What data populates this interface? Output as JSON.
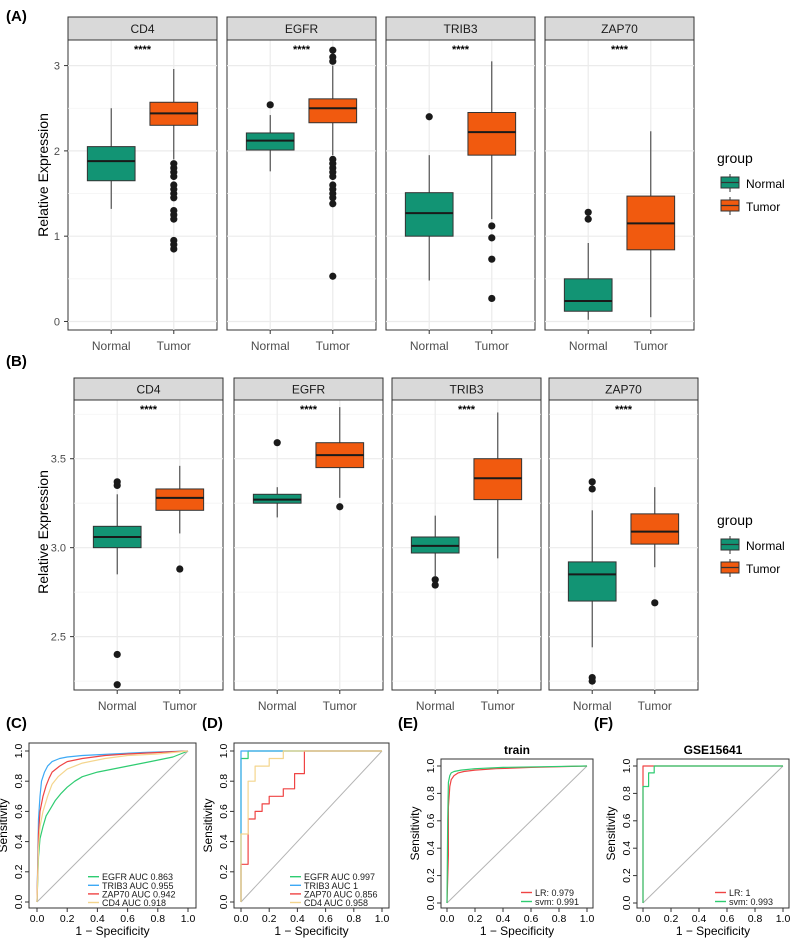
{
  "colors": {
    "normal": "#129474",
    "tumor": "#f15a0f",
    "strip_bg": "#d9d9d9",
    "grid": "#ebebeb",
    "roc_egfr": "#2ecc71",
    "roc_trib3": "#3da9f5",
    "roc_zap70": "#ef4444",
    "roc_cd4": "#f4d58d"
  },
  "legend": {
    "title": "group",
    "items": [
      "Normal",
      "Tumor"
    ]
  },
  "chart_data": [
    {
      "id": "A",
      "panel_label": "(A)",
      "type": "boxplot",
      "ylabel": "Relative Expression",
      "ylim": [
        -0.1,
        3.3
      ],
      "yticks": [
        0,
        1,
        2,
        3
      ],
      "ytick_labels": [
        "0",
        "1",
        "2",
        "3"
      ],
      "categories": [
        "Normal",
        "Tumor"
      ],
      "facets": [
        {
          "title": "CD4",
          "signif": "****",
          "boxes": [
            {
              "group": "Normal",
              "min": 1.32,
              "q1": 1.65,
              "median": 1.88,
              "q3": 2.05,
              "max": 2.5,
              "outliers": []
            },
            {
              "group": "Tumor",
              "min": 1.9,
              "q1": 2.3,
              "median": 2.44,
              "q3": 2.57,
              "max": 2.96,
              "outliers": [
                1.85,
                1.8,
                1.75,
                1.7,
                1.6,
                1.55,
                1.5,
                1.45,
                1.3,
                1.25,
                1.2,
                0.95,
                0.9,
                0.85
              ]
            }
          ]
        },
        {
          "title": "EGFR",
          "signif": "****",
          "boxes": [
            {
              "group": "Normal",
              "min": 1.76,
              "q1": 2.01,
              "median": 2.12,
              "q3": 2.21,
              "max": 2.42,
              "outliers": [
                2.54
              ]
            },
            {
              "group": "Tumor",
              "min": 1.95,
              "q1": 2.33,
              "median": 2.5,
              "q3": 2.61,
              "max": 3.0,
              "outliers": [
                3.18,
                3.1,
                3.05,
                1.9,
                1.85,
                1.8,
                1.75,
                1.7,
                1.6,
                1.55,
                1.5,
                1.45,
                1.38,
                0.53
              ]
            }
          ]
        },
        {
          "title": "TRIB3",
          "signif": "****",
          "boxes": [
            {
              "group": "Normal",
              "min": 0.48,
              "q1": 1.0,
              "median": 1.27,
              "q3": 1.51,
              "max": 1.95,
              "outliers": [
                2.4
              ]
            },
            {
              "group": "Tumor",
              "min": 1.2,
              "q1": 1.95,
              "median": 2.22,
              "q3": 2.45,
              "max": 3.05,
              "outliers": [
                1.12,
                0.98,
                0.73,
                0.27
              ]
            }
          ]
        },
        {
          "title": "ZAP70",
          "signif": "****",
          "boxes": [
            {
              "group": "Normal",
              "min": 0.02,
              "q1": 0.12,
              "median": 0.24,
              "q3": 0.5,
              "max": 0.92,
              "outliers": [
                1.28,
                1.2
              ]
            },
            {
              "group": "Tumor",
              "min": 0.05,
              "q1": 0.84,
              "median": 1.15,
              "q3": 1.47,
              "max": 2.23,
              "outliers": []
            }
          ]
        }
      ]
    },
    {
      "id": "B",
      "panel_label": "(B)",
      "type": "boxplot",
      "ylabel": "Relative Expression",
      "ylim": [
        2.2,
        3.83
      ],
      "yticks": [
        2.5,
        3.0,
        3.5
      ],
      "ytick_labels": [
        "2.5",
        "3.0",
        "3.5"
      ],
      "categories": [
        "Normal",
        "Tumor"
      ],
      "facets": [
        {
          "title": "CD4",
          "signif": "****",
          "boxes": [
            {
              "group": "Normal",
              "min": 2.85,
              "q1": 3.0,
              "median": 3.06,
              "q3": 3.12,
              "max": 3.3,
              "outliers": [
                3.37,
                3.35,
                2.4,
                2.23
              ]
            },
            {
              "group": "Tumor",
              "min": 3.08,
              "q1": 3.21,
              "median": 3.28,
              "q3": 3.33,
              "max": 3.46,
              "outliers": [
                2.88
              ]
            }
          ]
        },
        {
          "title": "EGFR",
          "signif": "****",
          "boxes": [
            {
              "group": "Normal",
              "min": 3.17,
              "q1": 3.25,
              "median": 3.27,
              "q3": 3.3,
              "max": 3.34,
              "outliers": [
                3.59
              ]
            },
            {
              "group": "Tumor",
              "min": 3.28,
              "q1": 3.45,
              "median": 3.52,
              "q3": 3.59,
              "max": 3.79,
              "outliers": [
                3.23
              ]
            }
          ]
        },
        {
          "title": "TRIB3",
          "signif": "****",
          "boxes": [
            {
              "group": "Normal",
              "min": 2.84,
              "q1": 2.97,
              "median": 3.01,
              "q3": 3.06,
              "max": 3.18,
              "outliers": [
                2.82,
                2.79
              ]
            },
            {
              "group": "Tumor",
              "min": 2.94,
              "q1": 3.27,
              "median": 3.39,
              "q3": 3.5,
              "max": 3.76,
              "outliers": []
            }
          ]
        },
        {
          "title": "ZAP70",
          "signif": "****",
          "boxes": [
            {
              "group": "Normal",
              "min": 2.44,
              "q1": 2.7,
              "median": 2.85,
              "q3": 2.92,
              "max": 3.21,
              "outliers": [
                3.37,
                3.33,
                2.27,
                2.25
              ]
            },
            {
              "group": "Tumor",
              "min": 2.89,
              "q1": 3.02,
              "median": 3.09,
              "q3": 3.19,
              "max": 3.34,
              "outliers": [
                2.69
              ]
            }
          ]
        }
      ]
    },
    {
      "id": "C",
      "panel_label": "(C)",
      "type": "line",
      "title": "",
      "xlabel": "1 − Specificity",
      "ylabel": "Sensitivity",
      "xlim": [
        0,
        1
      ],
      "ylim": [
        0,
        1
      ],
      "ticks": [
        0,
        0.2,
        0.4,
        0.6,
        0.8,
        1
      ],
      "tick_labels": [
        "0.0",
        "0.2",
        "0.4",
        "0.6",
        "0.8",
        "1.0"
      ],
      "series": [
        {
          "name": "EGFR AUC 0.863",
          "color": "#2ecc71",
          "x": [
            0,
            0.01,
            0.02,
            0.04,
            0.06,
            0.09,
            0.12,
            0.16,
            0.2,
            0.25,
            0.3,
            0.4,
            0.5,
            0.6,
            0.75,
            0.9,
            1
          ],
          "y": [
            0,
            0.3,
            0.42,
            0.5,
            0.57,
            0.62,
            0.67,
            0.72,
            0.76,
            0.8,
            0.83,
            0.86,
            0.88,
            0.9,
            0.93,
            0.96,
            1
          ]
        },
        {
          "name": "TRIB3 AUC 0.955",
          "color": "#3da9f5",
          "x": [
            0,
            0.01,
            0.02,
            0.03,
            0.05,
            0.07,
            0.1,
            0.15,
            0.2,
            0.3,
            0.5,
            0.7,
            1
          ],
          "y": [
            0,
            0.55,
            0.7,
            0.8,
            0.86,
            0.9,
            0.93,
            0.95,
            0.96,
            0.97,
            0.98,
            0.99,
            1
          ]
        },
        {
          "name": "ZAP70 AUC 0.942",
          "color": "#ef4444",
          "x": [
            0,
            0.01,
            0.02,
            0.04,
            0.06,
            0.08,
            0.1,
            0.15,
            0.2,
            0.3,
            0.45,
            0.6,
            0.8,
            1
          ],
          "y": [
            0,
            0.45,
            0.6,
            0.7,
            0.77,
            0.82,
            0.86,
            0.9,
            0.93,
            0.95,
            0.97,
            0.98,
            0.99,
            1
          ]
        },
        {
          "name": "CD4 AUC 0.918",
          "color": "#f4d58d",
          "x": [
            0,
            0.01,
            0.02,
            0.04,
            0.07,
            0.1,
            0.14,
            0.2,
            0.3,
            0.45,
            0.6,
            0.8,
            1
          ],
          "y": [
            0,
            0.35,
            0.5,
            0.6,
            0.7,
            0.78,
            0.83,
            0.88,
            0.92,
            0.95,
            0.97,
            0.98,
            1
          ]
        }
      ]
    },
    {
      "id": "D",
      "panel_label": "(D)",
      "type": "line",
      "title": "",
      "xlabel": "1 − Specificity",
      "ylabel": "Sensitivity",
      "xlim": [
        0,
        1
      ],
      "ylim": [
        0,
        1
      ],
      "ticks": [
        0,
        0.2,
        0.4,
        0.6,
        0.8,
        1
      ],
      "tick_labels": [
        "0.0",
        "0.2",
        "0.4",
        "0.6",
        "0.8",
        "1.0"
      ],
      "series": [
        {
          "name": "EGFR AUC 0.997",
          "color": "#2ecc71",
          "x": [
            0,
            0,
            0.05,
            0.05,
            1
          ],
          "y": [
            0,
            0.95,
            0.95,
            1,
            1
          ]
        },
        {
          "name": "TRIB3 AUC 1",
          "color": "#3da9f5",
          "x": [
            0,
            0,
            1
          ],
          "y": [
            0,
            1,
            1
          ]
        },
        {
          "name": "ZAP70 AUC 0.856",
          "color": "#ef4444",
          "x": [
            0,
            0,
            0.05,
            0.05,
            0.1,
            0.1,
            0.15,
            0.15,
            0.2,
            0.2,
            0.3,
            0.3,
            0.38,
            0.38,
            0.45,
            0.45,
            1
          ],
          "y": [
            0,
            0.25,
            0.25,
            0.55,
            0.55,
            0.6,
            0.6,
            0.65,
            0.65,
            0.7,
            0.7,
            0.75,
            0.75,
            0.85,
            0.85,
            1,
            1
          ]
        },
        {
          "name": "CD4 AUC 0.958",
          "color": "#f4d58d",
          "x": [
            0,
            0,
            0.05,
            0.05,
            0.1,
            0.1,
            0.2,
            0.2,
            0.3,
            0.3,
            1
          ],
          "y": [
            0,
            0.45,
            0.45,
            0.8,
            0.8,
            0.9,
            0.9,
            0.95,
            0.95,
            1,
            1
          ]
        }
      ]
    },
    {
      "id": "E",
      "panel_label": "(E)",
      "type": "line",
      "title": "train",
      "xlabel": "1 − Specificity",
      "ylabel": "Sensitivity",
      "xlim": [
        0,
        1
      ],
      "ylim": [
        0,
        1
      ],
      "ticks": [
        0,
        0.2,
        0.4,
        0.6,
        0.8,
        1
      ],
      "tick_labels": [
        "0.0",
        "0.2",
        "0.4",
        "0.6",
        "0.8",
        "1.0"
      ],
      "series": [
        {
          "name": "LR: 0.979",
          "color": "#ef4444",
          "x": [
            0,
            0.01,
            0.01,
            0.02,
            0.03,
            0.05,
            0.08,
            0.12,
            0.2,
            0.35,
            0.6,
            1
          ],
          "y": [
            0,
            0.35,
            0.7,
            0.85,
            0.9,
            0.93,
            0.95,
            0.96,
            0.97,
            0.98,
            0.99,
            1
          ]
        },
        {
          "name": "svm: 0.991",
          "color": "#2ecc71",
          "x": [
            0,
            0.005,
            0.01,
            0.02,
            0.03,
            0.05,
            0.1,
            0.2,
            0.4,
            0.7,
            1
          ],
          "y": [
            0,
            0.6,
            0.88,
            0.93,
            0.95,
            0.96,
            0.97,
            0.98,
            0.99,
            0.995,
            1
          ]
        }
      ]
    },
    {
      "id": "F",
      "panel_label": "(F)",
      "type": "line",
      "title": "GSE15641",
      "xlabel": "1 − Specificity",
      "ylabel": "Sensitivity",
      "xlim": [
        0,
        1
      ],
      "ylim": [
        0,
        1
      ],
      "ticks": [
        0,
        0.2,
        0.4,
        0.6,
        0.8,
        1
      ],
      "tick_labels": [
        "0.0",
        "0.2",
        "0.4",
        "0.6",
        "0.8",
        "1.0"
      ],
      "series": [
        {
          "name": "LR: 1",
          "color": "#ef4444",
          "x": [
            0,
            0,
            1
          ],
          "y": [
            0,
            1,
            1
          ]
        },
        {
          "name": "svm: 0.993",
          "color": "#2ecc71",
          "x": [
            0,
            0,
            0.04,
            0.04,
            0.08,
            0.08,
            1
          ],
          "y": [
            0,
            0.85,
            0.85,
            0.95,
            0.95,
            1,
            1
          ]
        }
      ]
    }
  ]
}
